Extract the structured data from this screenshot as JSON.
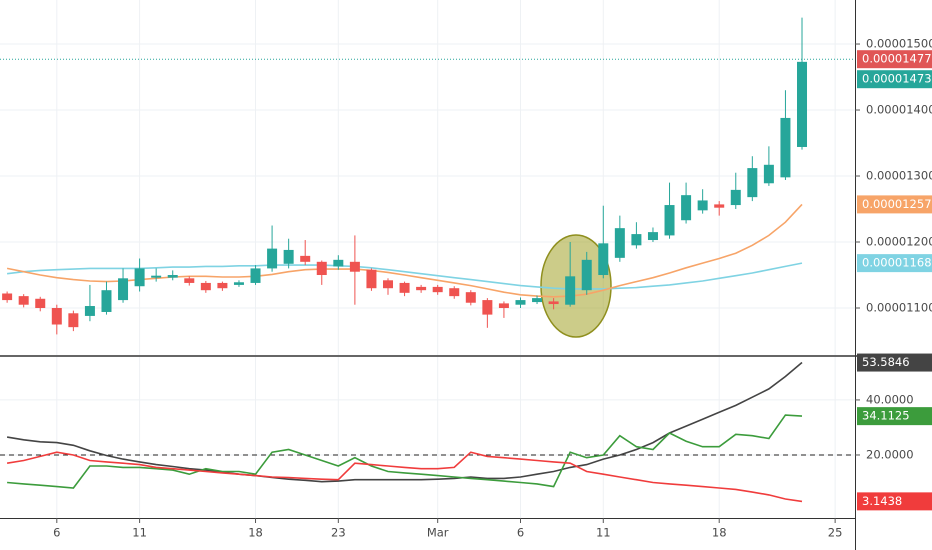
{
  "chart_data": [
    {
      "type": "candlestick",
      "x": [
        0,
        1,
        2,
        3,
        4,
        5,
        6,
        7,
        8,
        9,
        10,
        11,
        12,
        13,
        14,
        15,
        16,
        17,
        18,
        19,
        20,
        21,
        22,
        23,
        24,
        25,
        26,
        27,
        28,
        29,
        30,
        31,
        32,
        33,
        34,
        35,
        36,
        37,
        38,
        39,
        40,
        41,
        42,
        43,
        44,
        45,
        46,
        47,
        48
      ],
      "open": [
        1.122e-05,
        1.118e-05,
        1.114e-05,
        1.1e-05,
        1.092e-05,
        1.088e-05,
        1.094e-05,
        1.112e-05,
        1.133e-05,
        1.146e-05,
        1.146e-05,
        1.145e-05,
        1.138e-05,
        1.138e-05,
        1.135e-05,
        1.138e-05,
        1.16e-05,
        1.167e-05,
        1.179e-05,
        1.17e-05,
        1.163e-05,
        1.17e-05,
        1.158e-05,
        1.142e-05,
        1.138e-05,
        1.132e-05,
        1.132e-05,
        1.13e-05,
        1.124e-05,
        1.112e-05,
        1.107e-05,
        1.105e-05,
        1.109e-05,
        1.11e-05,
        1.105e-05,
        1.127e-05,
        1.15e-05,
        1.176e-05,
        1.195e-05,
        1.203e-05,
        1.21e-05,
        1.233e-05,
        1.248e-05,
        1.257e-05,
        1.256e-05,
        1.268e-05,
        1.289e-05,
        1.298e-05,
        1.344e-05
      ],
      "high": [
        1.125e-05,
        1.121e-05,
        1.117e-05,
        1.105e-05,
        1.096e-05,
        1.135e-05,
        1.14e-05,
        1.16e-05,
        1.175e-05,
        1.16e-05,
        1.157e-05,
        1.148e-05,
        1.141e-05,
        1.14e-05,
        1.142e-05,
        1.165e-05,
        1.225e-05,
        1.205e-05,
        1.203e-05,
        1.172e-05,
        1.18e-05,
        1.21e-05,
        1.16e-05,
        1.145e-05,
        1.14e-05,
        1.135e-05,
        1.135e-05,
        1.133e-05,
        1.127e-05,
        1.115e-05,
        1.11e-05,
        1.116e-05,
        1.119e-05,
        1.115e-05,
        1.2e-05,
        1.185e-05,
        1.255e-05,
        1.24e-05,
        1.23e-05,
        1.222e-05,
        1.29e-05,
        1.29e-05,
        1.28e-05,
        1.262e-05,
        1.305e-05,
        1.33e-05,
        1.345e-05,
        1.43e-05,
        1.54e-05
      ],
      "low": [
        1.108e-05,
        1.101e-05,
        1.095e-05,
        1.06e-05,
        1.065e-05,
        1.08e-05,
        1.09e-05,
        1.108e-05,
        1.125e-05,
        1.14e-05,
        1.142e-05,
        1.134e-05,
        1.123e-05,
        1.126e-05,
        1.132e-05,
        1.135e-05,
        1.155e-05,
        1.16e-05,
        1.165e-05,
        1.135e-05,
        1.158e-05,
        1.105e-05,
        1.126e-05,
        1.12e-05,
        1.118e-05,
        1.123e-05,
        1.12e-05,
        1.114e-05,
        1.104e-05,
        1.07e-05,
        1.085e-05,
        1.1e-05,
        1.106e-05,
        1.098e-05,
        1.102e-05,
        1.12e-05,
        1.145e-05,
        1.17e-05,
        1.19e-05,
        1.2e-05,
        1.205e-05,
        1.228e-05,
        1.243e-05,
        1.24e-05,
        1.25e-05,
        1.262e-05,
        1.285e-05,
        1.294e-05,
        1.34e-05
      ],
      "close": [
        1.112e-05,
        1.105e-05,
        1.1e-05,
        1.075e-05,
        1.071e-05,
        1.103e-05,
        1.127e-05,
        1.145e-05,
        1.16e-05,
        1.149e-05,
        1.15e-05,
        1.138e-05,
        1.127e-05,
        1.13e-05,
        1.139e-05,
        1.16e-05,
        1.19e-05,
        1.188e-05,
        1.17e-05,
        1.15e-05,
        1.173e-05,
        1.155e-05,
        1.13e-05,
        1.13e-05,
        1.123e-05,
        1.127e-05,
        1.124e-05,
        1.118e-05,
        1.108e-05,
        1.09e-05,
        1.1e-05,
        1.112e-05,
        1.115e-05,
        1.106e-05,
        1.148e-05,
        1.173e-05,
        1.198e-05,
        1.221e-05,
        1.212e-05,
        1.215e-05,
        1.256e-05,
        1.271e-05,
        1.263e-05,
        1.252e-05,
        1.279e-05,
        1.312e-05,
        1.317e-05,
        1.388e-05,
        1.473e-05
      ],
      "up_color": "#26a69a",
      "down_color": "#ef5350",
      "series": [
        {
          "color": "#7fd3e3",
          "values": [
            1.152e-05,
            1.155e-05,
            1.157e-05,
            1.158e-05,
            1.159e-05,
            1.16e-05,
            1.16e-05,
            1.16e-05,
            1.16e-05,
            1.161e-05,
            1.162e-05,
            1.162e-05,
            1.163e-05,
            1.163e-05,
            1.164e-05,
            1.164e-05,
            1.165e-05,
            1.165e-05,
            1.165e-05,
            1.165e-05,
            1.164e-05,
            1.163e-05,
            1.161e-05,
            1.158e-05,
            1.155e-05,
            1.152e-05,
            1.149e-05,
            1.146e-05,
            1.143e-05,
            1.14e-05,
            1.137e-05,
            1.134e-05,
            1.132e-05,
            1.13e-05,
            1.129e-05,
            1.129e-05,
            1.129e-05,
            1.13e-05,
            1.131e-05,
            1.133e-05,
            1.135e-05,
            1.138e-05,
            1.141e-05,
            1.145e-05,
            1.149e-05,
            1.153e-05,
            1.158e-05,
            1.163e-05,
            1.168e-05
          ]
        },
        {
          "color": "#f7a468",
          "values": [
            1.16e-05,
            1.155e-05,
            1.15e-05,
            1.146e-05,
            1.143e-05,
            1.141e-05,
            1.14e-05,
            1.141e-05,
            1.143e-05,
            1.145e-05,
            1.147e-05,
            1.148e-05,
            1.148e-05,
            1.147e-05,
            1.147e-05,
            1.148e-05,
            1.151e-05,
            1.155e-05,
            1.158e-05,
            1.159e-05,
            1.159e-05,
            1.159e-05,
            1.157e-05,
            1.154e-05,
            1.15e-05,
            1.146e-05,
            1.142e-05,
            1.138e-05,
            1.134e-05,
            1.129e-05,
            1.124e-05,
            1.12e-05,
            1.118e-05,
            1.117e-05,
            1.118e-05,
            1.121e-05,
            1.127e-05,
            1.134e-05,
            1.14e-05,
            1.146e-05,
            1.153e-05,
            1.161e-05,
            1.168e-05,
            1.175e-05,
            1.183e-05,
            1.195e-05,
            1.21e-05,
            1.23e-05,
            1.257e-05
          ]
        }
      ],
      "price_line": 1.477e-05,
      "price_line_color": "#e05555",
      "xlim": [
        -0.43,
        51.2
      ],
      "ylim": [
        1.0288e-05,
        1.5667e-05
      ],
      "yticks": [
        {
          "value": 1.1e-05,
          "label": "0.00001100"
        },
        {
          "value": 1.2e-05,
          "label": "0.00001200"
        },
        {
          "value": 1.3e-05,
          "label": "0.00001300"
        },
        {
          "value": 1.4e-05,
          "label": "0.00001400"
        },
        {
          "value": 1.5e-05,
          "label": "0.00001500"
        }
      ],
      "grid": true
    },
    {
      "type": "line",
      "x": [
        0,
        1,
        2,
        3,
        4,
        5,
        6,
        7,
        8,
        9,
        10,
        11,
        12,
        13,
        14,
        15,
        16,
        17,
        18,
        19,
        20,
        21,
        22,
        23,
        24,
        25,
        26,
        27,
        28,
        29,
        30,
        31,
        32,
        33,
        34,
        35,
        36,
        37,
        38,
        39,
        40,
        41,
        42,
        43,
        44,
        45,
        46,
        47,
        48
      ],
      "series": [
        {
          "color": "#444444",
          "values": [
            26.5,
            25.5,
            24.8,
            24.5,
            23.5,
            21.5,
            19.8,
            18.5,
            17.5,
            16.5,
            15.8,
            15,
            14.5,
            13.8,
            13,
            12.5,
            11.8,
            11.2,
            10.8,
            10.3,
            10.5,
            11,
            11,
            11,
            11,
            11,
            11.2,
            11.5,
            12,
            11.5,
            11.5,
            12,
            13,
            14,
            15.5,
            16.5,
            18.5,
            20,
            22,
            24.5,
            28,
            30.5,
            33,
            35.5,
            38,
            41,
            44,
            48.5,
            53.5846
          ]
        },
        {
          "color": "#3c9c3c",
          "values": [
            10,
            9.5,
            9,
            8.5,
            8,
            16,
            16,
            15.5,
            15.5,
            15,
            14.5,
            13,
            15,
            14,
            14,
            13,
            21,
            22,
            20,
            18,
            16,
            19,
            16,
            14,
            13.5,
            13,
            12.5,
            12,
            11.5,
            11,
            10.5,
            10,
            9.5,
            8.5,
            21,
            19,
            20,
            27,
            23,
            22,
            28,
            25,
            23,
            23,
            27.5,
            27,
            26,
            34.5,
            34.1125
          ]
        },
        {
          "color": "#f03c3c",
          "values": [
            17,
            18,
            19.5,
            21,
            20,
            18,
            17.5,
            17,
            16.5,
            15.5,
            15,
            14.5,
            14,
            13.5,
            13,
            12.5,
            12,
            11.8,
            11.5,
            11.2,
            11,
            17,
            16.5,
            16,
            15.5,
            15,
            15,
            15.5,
            21,
            19.5,
            19,
            18.5,
            18,
            17.5,
            17,
            14,
            13,
            12,
            11,
            10,
            9.5,
            9,
            8.5,
            8,
            7.5,
            6.5,
            5.5,
            4,
            3.1438
          ]
        }
      ],
      "level": 20,
      "xlim": [
        -0.43,
        51.2
      ],
      "ylim": [
        -2.9,
        55.6
      ],
      "yticks": [
        {
          "value": 20,
          "label": "20.0000"
        },
        {
          "value": 40,
          "label": "40.0000"
        }
      ],
      "xticks": [
        {
          "value": 3,
          "label": "6"
        },
        {
          "value": 8,
          "label": "11"
        },
        {
          "value": 15,
          "label": "18"
        },
        {
          "value": 20,
          "label": "23"
        },
        {
          "value": 26,
          "label": "Mar"
        },
        {
          "value": 31,
          "label": "6"
        },
        {
          "value": 36,
          "label": "11"
        },
        {
          "value": 43,
          "label": "18"
        },
        {
          "value": 50,
          "label": "25"
        }
      ],
      "grid": true
    }
  ]
}
